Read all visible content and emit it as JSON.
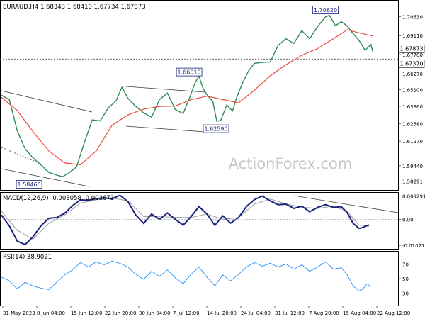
{
  "header": {
    "symbol_line": "EURAUD,H4  1.68343 1.68410 1.67734 1.67873"
  },
  "colors": {
    "price": "#2e8b57",
    "ma": "#e74c3c",
    "macd": "#1a237e",
    "macd_signal": "#9e9e9e",
    "rsi": "#1e90ff",
    "channel": "#3a3a3a",
    "label_border": "#1a237e"
  },
  "watermark": "ActionForex.com",
  "chart_data": [
    {
      "panel": "price",
      "type": "line",
      "title": "EURAUD,H4",
      "ohlc_header": {
        "open": 1.68343,
        "high": 1.6841,
        "low": 1.67734,
        "close": 1.67873
      },
      "ylim": [
        1.5775,
        1.7165
      ],
      "y_ticks": [
        "1.70530",
        "1.69110",
        "1.67700",
        "1.66270",
        "1.65100",
        "1.63860",
        "1.62580",
        "1.61270",
        "1.59440",
        "1.58291"
      ],
      "y_tick_values": [
        1.7053,
        1.6911,
        1.677,
        1.6627,
        1.651,
        1.6386,
        1.6258,
        1.6127,
        1.5944,
        1.58291
      ],
      "current_price": "1.67873",
      "level_price": "1.67370",
      "level_price_value": 1.6737,
      "price_labels": [
        {
          "text": "1.58460",
          "x": 0.07,
          "y": 1.5846
        },
        {
          "text": "1.66010",
          "x": 0.475,
          "y": 1.6601
        },
        {
          "text": "1.62590",
          "x": 0.543,
          "y": 1.6259
        },
        {
          "text": "1.70620",
          "x": 0.82,
          "y": 1.7062
        }
      ],
      "series": [
        {
          "values": [
            [
              0.0,
              1.6469
            ],
            [
              0.02,
              1.6435
            ],
            [
              0.04,
              1.6205
            ],
            [
              0.06,
              1.607
            ],
            [
              0.08,
              1.6003
            ],
            [
              0.1,
              1.5951
            ],
            [
              0.12,
              1.5895
            ],
            [
              0.14,
              1.5875
            ],
            [
              0.155,
              1.5863
            ],
            [
              0.17,
              1.589
            ],
            [
              0.19,
              1.5935
            ],
            [
              0.21,
              1.6118
            ],
            [
              0.23,
              1.6285
            ],
            [
              0.25,
              1.6278
            ],
            [
              0.27,
              1.6373
            ],
            [
              0.29,
              1.6425
            ],
            [
              0.305,
              1.6528
            ],
            [
              0.32,
              1.6445
            ],
            [
              0.34,
              1.6385
            ],
            [
              0.36,
              1.6338
            ],
            [
              0.38,
              1.6305
            ],
            [
              0.4,
              1.6435
            ],
            [
              0.42,
              1.6485
            ],
            [
              0.44,
              1.6362
            ],
            [
              0.46,
              1.6332
            ],
            [
              0.475,
              1.6441
            ],
            [
              0.49,
              1.656
            ],
            [
              0.5,
              1.661
            ],
            [
              0.51,
              1.652
            ],
            [
              0.52,
              1.6472
            ],
            [
              0.535,
              1.642
            ],
            [
              0.545,
              1.6275
            ],
            [
              0.555,
              1.6282
            ],
            [
              0.57,
              1.6395
            ],
            [
              0.585,
              1.6352
            ],
            [
              0.595,
              1.645
            ],
            [
              0.61,
              1.6558
            ],
            [
              0.625,
              1.6648
            ],
            [
              0.64,
              1.6705
            ],
            [
              0.66,
              1.6712
            ],
            [
              0.68,
              1.6715
            ],
            [
              0.7,
              1.6838
            ],
            [
              0.72,
              1.6888
            ],
            [
              0.74,
              1.6853
            ],
            [
              0.76,
              1.6948
            ],
            [
              0.78,
              1.6888
            ],
            [
              0.8,
              1.6978
            ],
            [
              0.82,
              1.7051
            ],
            [
              0.83,
              1.7062
            ],
            [
              0.845,
              1.6985
            ],
            [
              0.86,
              1.7015
            ],
            [
              0.875,
              1.6982
            ],
            [
              0.89,
              1.6925
            ],
            [
              0.905,
              1.6875
            ],
            [
              0.92,
              1.6802
            ],
            [
              0.935,
              1.6845
            ],
            [
              0.94,
              1.6787
            ]
          ]
        },
        {
          "values": [
            [
              0.0,
              1.6452
            ],
            [
              0.04,
              1.6355
            ],
            [
              0.08,
              1.6198
            ],
            [
              0.12,
              1.6055
            ],
            [
              0.16,
              1.5965
            ],
            [
              0.2,
              1.5952
            ],
            [
              0.24,
              1.6055
            ],
            [
              0.28,
              1.6245
            ],
            [
              0.32,
              1.6322
            ],
            [
              0.36,
              1.6365
            ],
            [
              0.4,
              1.6385
            ],
            [
              0.44,
              1.6388
            ],
            [
              0.48,
              1.6435
            ],
            [
              0.52,
              1.6461
            ],
            [
              0.56,
              1.6436
            ],
            [
              0.6,
              1.6412
            ],
            [
              0.64,
              1.6505
            ],
            [
              0.68,
              1.6612
            ],
            [
              0.72,
              1.6695
            ],
            [
              0.76,
              1.6765
            ],
            [
              0.8,
              1.6815
            ],
            [
              0.84,
              1.6888
            ],
            [
              0.875,
              1.6955
            ],
            [
              0.9,
              1.6935
            ],
            [
              0.94,
              1.6908
            ]
          ]
        }
      ]
    },
    {
      "panel": "macd",
      "type": "line",
      "title": "MACD(12,26,9) -0.003058 -0.003673",
      "ylim": [
        -0.0113,
        0.0103
      ],
      "y_ticks": [
        "0.009291",
        "0.00",
        "-0.010211"
      ],
      "y_tick_values": [
        0.009291,
        0.0,
        -0.010211
      ],
      "series": [
        {
          "values": [
            [
              0.0,
              0.0018
            ],
            [
              0.02,
              -0.0025
            ],
            [
              0.04,
              -0.0085
            ],
            [
              0.06,
              -0.0099
            ],
            [
              0.08,
              -0.0068
            ],
            [
              0.1,
              -0.0025
            ],
            [
              0.12,
              0.0005
            ],
            [
              0.14,
              0.0008
            ],
            [
              0.16,
              0.0025
            ],
            [
              0.18,
              0.0055
            ],
            [
              0.2,
              0.0078
            ],
            [
              0.22,
              0.0076
            ],
            [
              0.24,
              0.0083
            ],
            [
              0.26,
              0.0086
            ],
            [
              0.28,
              0.0082
            ],
            [
              0.3,
              0.0096
            ],
            [
              0.32,
              0.0071
            ],
            [
              0.34,
              0.0018
            ],
            [
              0.36,
              -0.0015
            ],
            [
              0.38,
              0.0022
            ],
            [
              0.4,
              0.0001
            ],
            [
              0.42,
              0.0026
            ],
            [
              0.44,
              0.0001
            ],
            [
              0.46,
              -0.0022
            ],
            [
              0.48,
              0.0012
            ],
            [
              0.5,
              0.0051
            ],
            [
              0.52,
              0.0022
            ],
            [
              0.54,
              -0.0023
            ],
            [
              0.56,
              0.0015
            ],
            [
              0.58,
              -0.0014
            ],
            [
              0.6,
              0.0008
            ],
            [
              0.62,
              0.0052
            ],
            [
              0.64,
              0.0079
            ],
            [
              0.66,
              0.0093
            ],
            [
              0.68,
              0.0074
            ],
            [
              0.7,
              0.0059
            ],
            [
              0.72,
              0.0061
            ],
            [
              0.74,
              0.0044
            ],
            [
              0.76,
              0.0053
            ],
            [
              0.78,
              0.0031
            ],
            [
              0.8,
              0.0048
            ],
            [
              0.82,
              0.0059
            ],
            [
              0.84,
              0.0048
            ],
            [
              0.86,
              0.0051
            ],
            [
              0.875,
              0.0027
            ],
            [
              0.89,
              -0.0015
            ],
            [
              0.905,
              -0.0035
            ],
            [
              0.915,
              -0.0031
            ],
            [
              0.93,
              -0.0021
            ]
          ]
        },
        {
          "values": [
            [
              0.0,
              0.0033
            ],
            [
              0.04,
              -0.0042
            ],
            [
              0.08,
              -0.0078
            ],
            [
              0.12,
              -0.0015
            ],
            [
              0.16,
              0.0018
            ],
            [
              0.2,
              0.0065
            ],
            [
              0.24,
              0.0078
            ],
            [
              0.28,
              0.0085
            ],
            [
              0.32,
              0.0074
            ],
            [
              0.36,
              0.0012
            ],
            [
              0.4,
              0.0011
            ],
            [
              0.44,
              0.0009
            ],
            [
              0.48,
              0.0008
            ],
            [
              0.52,
              0.0022
            ],
            [
              0.56,
              0.0001
            ],
            [
              0.6,
              0.0008
            ],
            [
              0.64,
              0.0061
            ],
            [
              0.68,
              0.0081
            ],
            [
              0.72,
              0.0062
            ],
            [
              0.76,
              0.0049
            ],
            [
              0.8,
              0.0044
            ],
            [
              0.84,
              0.0053
            ],
            [
              0.875,
              0.0032
            ],
            [
              0.905,
              -0.0022
            ],
            [
              0.93,
              -0.0026
            ]
          ]
        }
      ]
    },
    {
      "panel": "rsi",
      "type": "line",
      "title": "RSI(14) 38.9021",
      "ylim": [
        14,
        86
      ],
      "y_ticks": [
        "70",
        "50",
        "30"
      ],
      "y_tick_values": [
        70,
        50,
        30
      ],
      "series": [
        {
          "values": [
            [
              0.0,
              52
            ],
            [
              0.02,
              47
            ],
            [
              0.04,
              36
            ],
            [
              0.06,
              45
            ],
            [
              0.08,
              40
            ],
            [
              0.1,
              37
            ],
            [
              0.12,
              35
            ],
            [
              0.14,
              45
            ],
            [
              0.16,
              55
            ],
            [
              0.18,
              62
            ],
            [
              0.2,
              72
            ],
            [
              0.22,
              66
            ],
            [
              0.24,
              73
            ],
            [
              0.26,
              69
            ],
            [
              0.28,
              74
            ],
            [
              0.3,
              71
            ],
            [
              0.32,
              66
            ],
            [
              0.34,
              56
            ],
            [
              0.36,
              49
            ],
            [
              0.38,
              60
            ],
            [
              0.4,
              53
            ],
            [
              0.42,
              62
            ],
            [
              0.44,
              51
            ],
            [
              0.46,
              43
            ],
            [
              0.48,
              56
            ],
            [
              0.5,
              66
            ],
            [
              0.52,
              52
            ],
            [
              0.54,
              40
            ],
            [
              0.56,
              55
            ],
            [
              0.58,
              47
            ],
            [
              0.6,
              56
            ],
            [
              0.62,
              66
            ],
            [
              0.64,
              72
            ],
            [
              0.66,
              67
            ],
            [
              0.68,
              71
            ],
            [
              0.7,
              66
            ],
            [
              0.72,
              70
            ],
            [
              0.74,
              63
            ],
            [
              0.76,
              69
            ],
            [
              0.78,
              60
            ],
            [
              0.8,
              66
            ],
            [
              0.82,
              73
            ],
            [
              0.84,
              63
            ],
            [
              0.86,
              65
            ],
            [
              0.875,
              55
            ],
            [
              0.89,
              40
            ],
            [
              0.905,
              33
            ],
            [
              0.915,
              36
            ],
            [
              0.925,
              43
            ],
            [
              0.935,
              39
            ]
          ]
        }
      ]
    }
  ],
  "x_axis": {
    "labels": [
      "31 May 2023",
      "8 Jun 04:00",
      "15 Jun 12:00",
      "22 Jun 20:00",
      "30 Jun 04:00",
      "7 Jul 12:00",
      "14 Jul 20:00",
      "24 Jul 04:00",
      "31 Jul 12:00",
      "7 Aug 20:00",
      "15 Aug 04:00",
      "22 Aug 12:00"
    ]
  }
}
